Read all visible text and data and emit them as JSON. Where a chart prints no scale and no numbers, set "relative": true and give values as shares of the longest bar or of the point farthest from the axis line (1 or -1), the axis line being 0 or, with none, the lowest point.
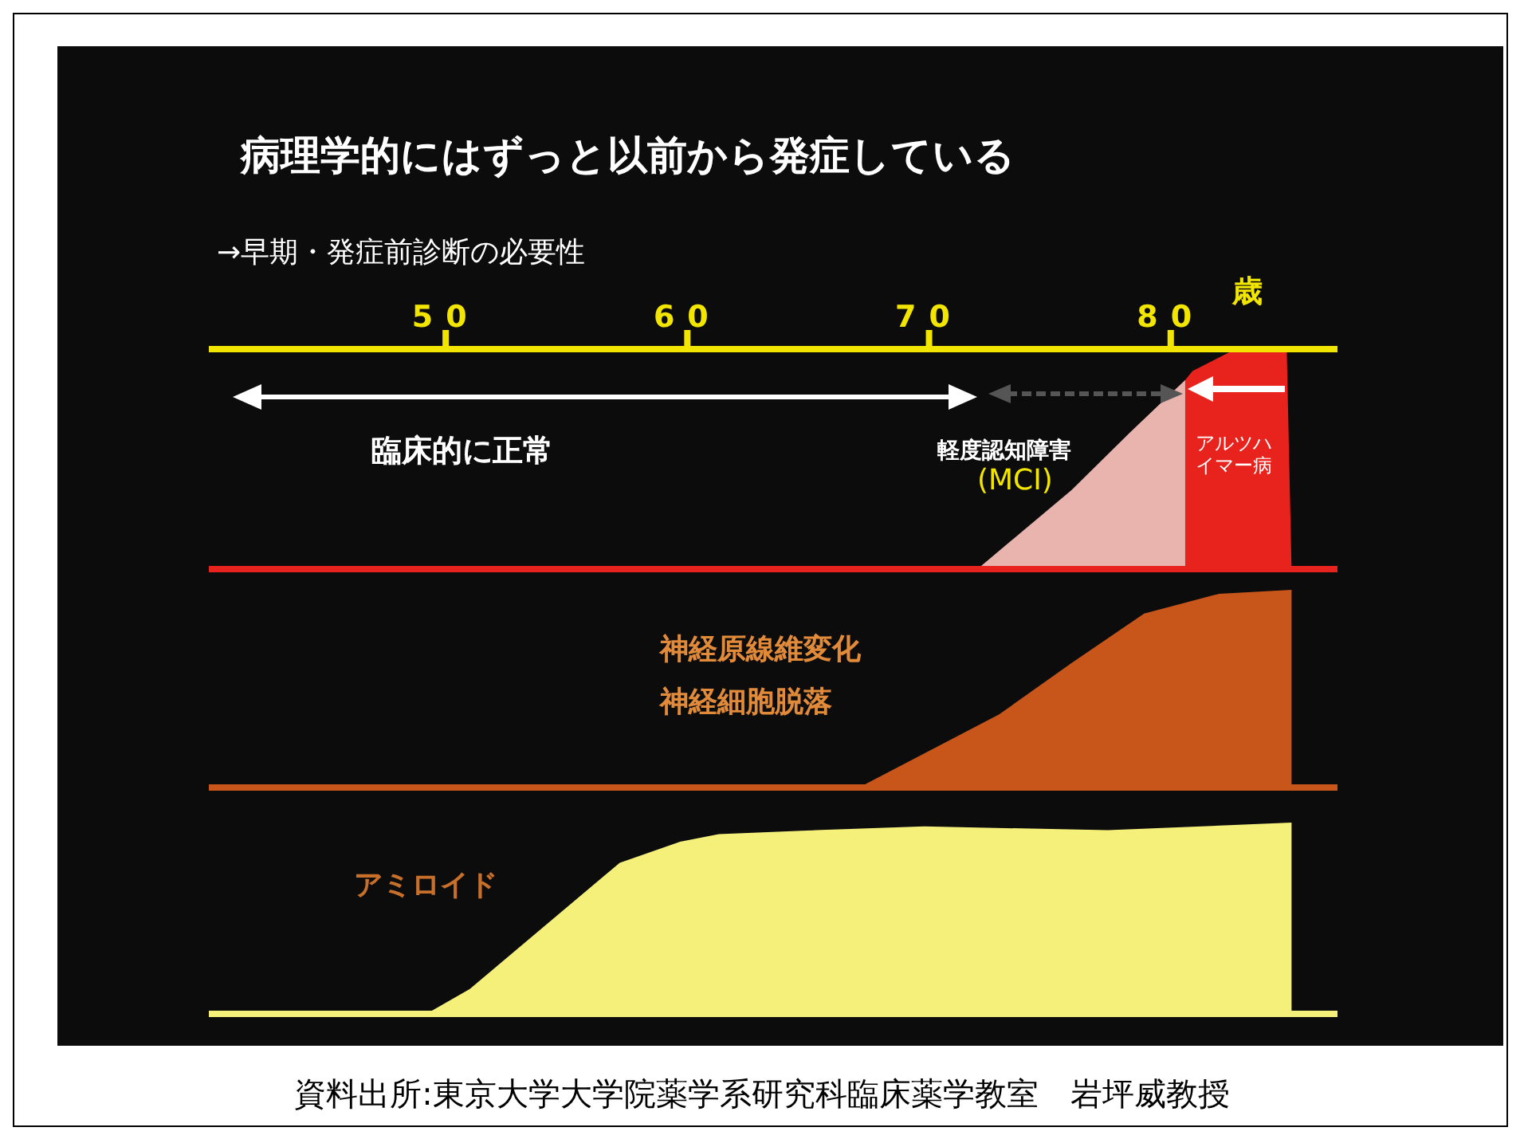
{
  "chart_data": [
    {
      "type": "area",
      "title": "病理学的にはずっと以前から発症している",
      "subtitle": "→早期・発症前診断の必要性",
      "xlabel": "歳",
      "relative": true,
      "xlim": [
        40.2,
        86.9
      ],
      "xticks": [
        50,
        60,
        70,
        80
      ],
      "tick_labels": "x",
      "legend": false,
      "annotations": [
        "臨床的に正常",
        "軽度認知障害",
        "(MCI)",
        "アルツハイマー病"
      ],
      "series": [
        {
          "color": "#e9b4ae",
          "x": [
            72.0,
            75.9,
            78.3,
            80.6,
            80.6
          ],
          "values": [
            0,
            0.36,
            0.62,
            0.86,
            0
          ]
        },
        {
          "color": "#e8221c",
          "x": [
            80.6,
            80.6,
            80.9,
            82.5,
            84.8,
            85.0
          ],
          "values": [
            0,
            0.86,
            0.9,
            0.99,
            1.0,
            0
          ]
        }
      ]
    },
    {
      "type": "area",
      "relative": true,
      "xlim": [
        40.2,
        86.9
      ],
      "tick_labels": false,
      "legend": false,
      "annotations": [
        "神経原線維変化",
        "神経細胞脱落"
      ],
      "series": [
        {
          "color": "#c8551a",
          "x": [
            67.1,
            72.9,
            75.9,
            78.9,
            82.0,
            85.0,
            85.0
          ],
          "values": [
            0,
            0.37,
            0.63,
            0.88,
            0.98,
            1.0,
            0
          ]
        }
      ]
    },
    {
      "type": "area",
      "relative": true,
      "xlim": [
        40.2,
        86.9
      ],
      "tick_labels": false,
      "legend": false,
      "annotations": [
        "アミロイド",
        "資料出所:東京大学大学院薬学系研究科臨床薬学教室　岩坪威教授"
      ],
      "series": [
        {
          "color": "#f5f07a",
          "x": [
            49.2,
            51.0,
            57.2,
            59.7,
            61.3,
            65.3,
            69.8,
            77.4,
            85.0,
            85.0
          ],
          "values": [
            0,
            0.13,
            0.79,
            0.9,
            0.94,
            0.96,
            0.98,
            0.96,
            1.0,
            0
          ]
        }
      ]
    }
  ]
}
